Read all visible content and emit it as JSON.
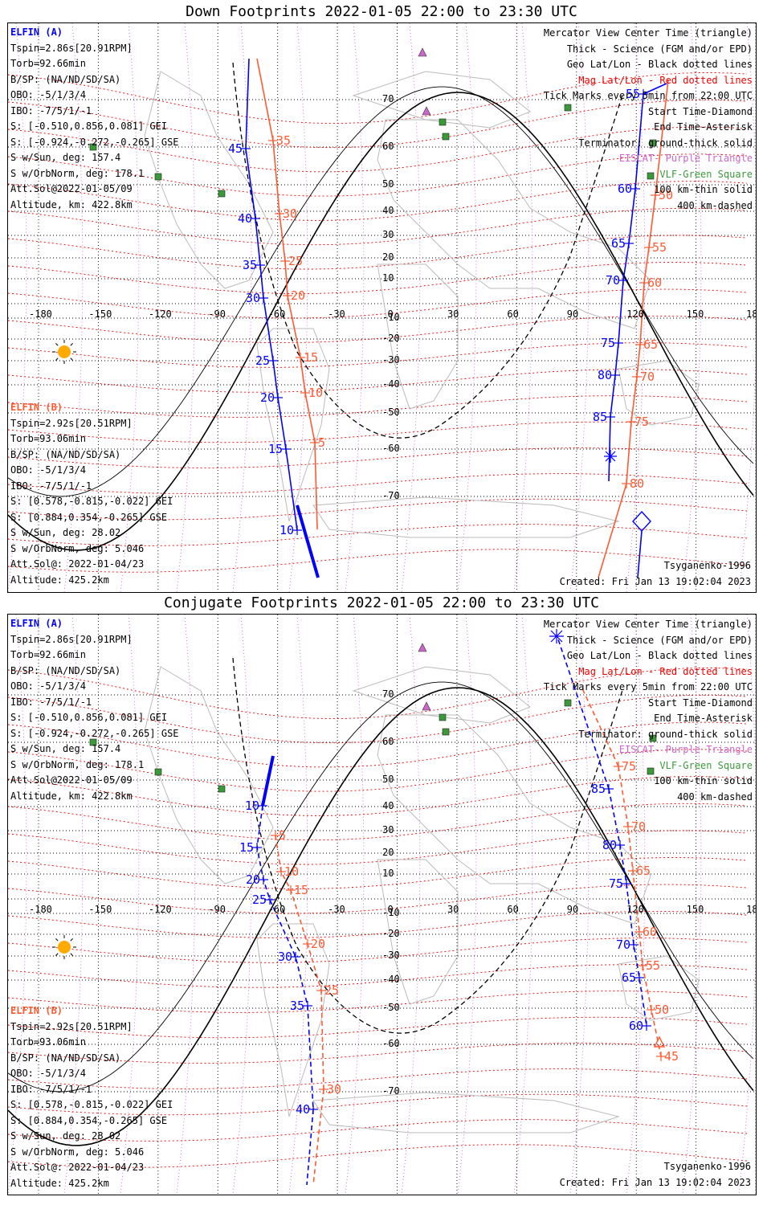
{
  "colors": {
    "blue": "#0000ff",
    "orange": "#ff5a32",
    "black": "#000000",
    "magenta": "#cc66cc",
    "green": "#3a9a3a",
    "land": "#bbbbbb",
    "red": "#ee0000"
  },
  "panels": [
    {
      "title": "Down Footprints 2022-01-05 22:00 to 23:30 UTC",
      "elfin_a": {
        "header": "ELFIN (A)",
        "lines": [
          "Tspin=2.86s[20.91RPM]",
          "Torb=92.66min",
          "B/SP: (NA/ND/SD/SA)",
          "OBO: -5/1/3/4",
          "IBO: -7/5/1/-1",
          "S: [-0.510,0.856,0.081] GEI",
          "S: [-0.924,-0.272,-0.265] GSE",
          "S w/Sun, deg: 157.4",
          "S w/OrbNorm, deg: 178.1",
          "Att.Sol@2022-01-05/09",
          "Altitude, km: 422.8km"
        ]
      },
      "elfin_b": {
        "header": "ELFIN (B)",
        "lines": [
          "Tspin=2.92s[20.51RPM]",
          "Torb=93.06min",
          "B/SP: (NA/ND/SD/SA)",
          "OBO: -5/1/3/4",
          "IBO: -7/5/1/-1",
          "S: [0.578,-0.815,-0.022] GEI",
          "S: [0.884,0.354,-0.265] GSE",
          "S w/Sun, deg: 28.02",
          "S w/OrbNorm, deg: 5.046",
          "Att.Sol@: 2022-01-04/23",
          "Altitude: 425.2km"
        ]
      },
      "legend": [
        {
          "text": "Mercator View Center Time (triangle)",
          "color": "#000000"
        },
        {
          "text": "Thick - Science (FGM and/or EPD)",
          "color": "#000000"
        },
        {
          "text": "Geo Lat/Lon - Black dotted lines",
          "color": "#000000"
        },
        {
          "text": "Mag Lat/Lon - Red dotted lines",
          "color": "#ee0000"
        },
        {
          "text": "Tick Marks every 5min from 22:00 UTC",
          "color": "#000000"
        },
        {
          "text": "Start Time-Diamond",
          "color": "#000000"
        },
        {
          "text": "End Time-Asterisk",
          "color": "#000000"
        },
        {
          "text": "Terminator: ground-thick solid",
          "color": "#000000"
        },
        {
          "text": "EISCAT- Purple Triangle",
          "color": "#cc66cc"
        },
        {
          "text": "VLF-Green Square",
          "color": "#3a9a3a"
        },
        {
          "text": "100 km-thin solid",
          "color": "#000000"
        },
        {
          "text": "400 km-dashed",
          "color": "#000000"
        }
      ],
      "model": "Tsyganenko-1996",
      "created": "Created: Fri Jan 13 19:02:04 2023",
      "tracks": {
        "a1_blue": [
          [
            "55",
            [
              791,
              88
            ]
          ],
          [
            "60",
            [
              781,
              206
            ]
          ],
          [
            "65",
            [
              773,
              274
            ]
          ],
          [
            "70",
            [
              766,
              320
            ]
          ],
          [
            "75",
            [
              760,
              398
            ]
          ],
          [
            "80",
            [
              756,
              438
            ]
          ],
          [
            "85",
            [
              750,
              490
            ]
          ]
        ],
        "a1_orange": [
          [
            "50",
            [
              806,
              214
            ]
          ],
          [
            "55",
            [
              798,
              279
            ]
          ],
          [
            "60",
            [
              792,
              323
            ]
          ],
          [
            "65",
            [
              787,
              400
            ]
          ],
          [
            "70",
            [
              783,
              440
            ]
          ],
          [
            "75",
            [
              776,
              496
            ]
          ],
          [
            "80",
            [
              770,
              573
            ]
          ]
        ],
        "b1_blue": [
          [
            "45",
            [
              296,
              156
            ]
          ],
          [
            "40",
            [
              308,
              243
            ]
          ],
          [
            "35",
            [
              314,
              301
            ]
          ],
          [
            "30",
            [
              318,
              342
            ]
          ],
          [
            "25",
            [
              330,
              420
            ]
          ],
          [
            "20",
            [
              336,
              466
            ]
          ],
          [
            "15",
            [
              346,
              530
            ]
          ],
          [
            "10",
            [
              360,
              631
            ]
          ]
        ],
        "b1_orange": [
          [
            "35",
            [
              330,
              146
            ]
          ],
          [
            "30",
            [
              338,
              237
            ]
          ],
          [
            "25",
            [
              345,
              296
            ]
          ],
          [
            "20",
            [
              348,
              339
            ]
          ],
          [
            "15",
            [
              364,
              416
            ]
          ],
          [
            "10",
            [
              370,
              460
            ]
          ],
          [
            "5",
            [
              382,
              522
            ]
          ]
        ]
      }
    },
    {
      "title": "Conjugate Footprints 2022-01-05 22:00 to 23:30 UTC",
      "elfin_a": {
        "header": "ELFIN (A)",
        "lines": [
          "Tspin=2.86s[20.91RPM]",
          "Torb=92.66min",
          "B/SP: (NA/ND/SD/SA)",
          "OBO: -5/1/3/4",
          "IBO: -7/5/1/-1",
          "S: [-0.510,0.856,0.081] GEI",
          "S: [-0.924,-0.272,-0.265] GSE",
          "S w/Sun, deg: 157.4",
          "S w/OrbNorm, deg: 178.1",
          "Att.Sol@2022-01-05/09",
          "Altitude, km: 422.8km"
        ]
      },
      "elfin_b": {
        "header": "ELFIN (B)",
        "lines": [
          "Tspin=2.92s[20.51RPM]",
          "Torb=93.06min",
          "B/SP: (NA/ND/SD/SA)",
          "OBO: -5/1/3/4",
          "IBO: -7/5/1/-1",
          "S: [0.578,-0.815,-0.022] GEI",
          "S: [0.884,0.354,-0.265] GSE",
          "S w/Sun, deg: 28.02",
          "S w/OrbNorm, deg: 5.046",
          "Att.Sol@: 2022-01-04/23",
          "Altitude: 425.2km"
        ]
      },
      "legend": [
        {
          "text": "Mercator View Center Time (triangle)",
          "color": "#000000"
        },
        {
          "text": "Thick - Science (FGM and/or EPD)",
          "color": "#000000"
        },
        {
          "text": "Geo Lat/Lon - Black dotted lines",
          "color": "#000000"
        },
        {
          "text": "Mag Lat/Lon - Red dotted lines",
          "color": "#ee0000"
        },
        {
          "text": "Tick Marks every 5min from 22:00 UTC",
          "color": "#000000"
        },
        {
          "text": "Start Time-Diamond",
          "color": "#000000"
        },
        {
          "text": "End Time-Asterisk",
          "color": "#000000"
        },
        {
          "text": "Terminator: ground-thick solid",
          "color": "#000000"
        },
        {
          "text": "EISCAT- Purple Triangle",
          "color": "#cc66cc"
        },
        {
          "text": "VLF-Green Square",
          "color": "#3a9a3a"
        },
        {
          "text": "100 km-thin solid",
          "color": "#000000"
        },
        {
          "text": "400 km-dashed",
          "color": "#000000"
        }
      ],
      "model": "Tsyganenko-1996",
      "created": "Created: Fri Jan 13 19:02:04 2023",
      "tracks": {
        "a1_blue": [
          [
            "85",
            [
              748,
              217
            ]
          ],
          [
            "80",
            [
              762,
              287
            ]
          ],
          [
            "75",
            [
              770,
              335
            ]
          ],
          [
            "70",
            [
              779,
              411
            ]
          ],
          [
            "65",
            [
              786,
              452
            ]
          ],
          [
            "60",
            [
              795,
              512
            ]
          ]
        ],
        "a1_orange": [
          [
            "75",
            [
              760,
              189
            ]
          ],
          [
            "70",
            [
              772,
              264
            ]
          ],
          [
            "65",
            [
              778,
              319
            ]
          ],
          [
            "60",
            [
              786,
              395
            ]
          ],
          [
            "55",
            [
              790,
              437
            ]
          ],
          [
            "50",
            [
              801,
              492
            ]
          ],
          [
            "45",
            [
              813,
              550
            ]
          ]
        ],
        "b1_blue": [
          [
            "10",
            [
              317,
              238
            ]
          ],
          [
            "15",
            [
              310,
              290
            ]
          ],
          [
            "20",
            [
              318,
              330
            ]
          ],
          [
            "25",
            [
              326,
              355
            ]
          ],
          [
            "30",
            [
              358,
              426
            ]
          ],
          [
            "35",
            [
              373,
              487
            ]
          ],
          [
            "40",
            [
              380,
              616
            ]
          ]
        ],
        "b1_orange": [
          [
            "5",
            [
              333,
              275
            ]
          ],
          [
            "10",
            [
              340,
              320
            ]
          ],
          [
            "15",
            [
              352,
              343
            ]
          ],
          [
            "20",
            [
              373,
              410
            ]
          ],
          [
            "25",
            [
              390,
              468
            ]
          ],
          [
            "30",
            [
              393,
              591
            ]
          ]
        ]
      }
    }
  ],
  "axis": {
    "lon_labels": [
      "-180",
      "-150",
      "-120",
      "-90",
      "-60",
      "-30",
      "0",
      "30",
      "60",
      "90",
      "120",
      "150",
      "180"
    ],
    "lat_labels": [
      "70",
      "60",
      "50",
      "40",
      "30",
      "20",
      "10",
      "-10",
      "-20",
      "-30",
      "-40",
      "-50",
      "-60",
      "-70"
    ]
  }
}
